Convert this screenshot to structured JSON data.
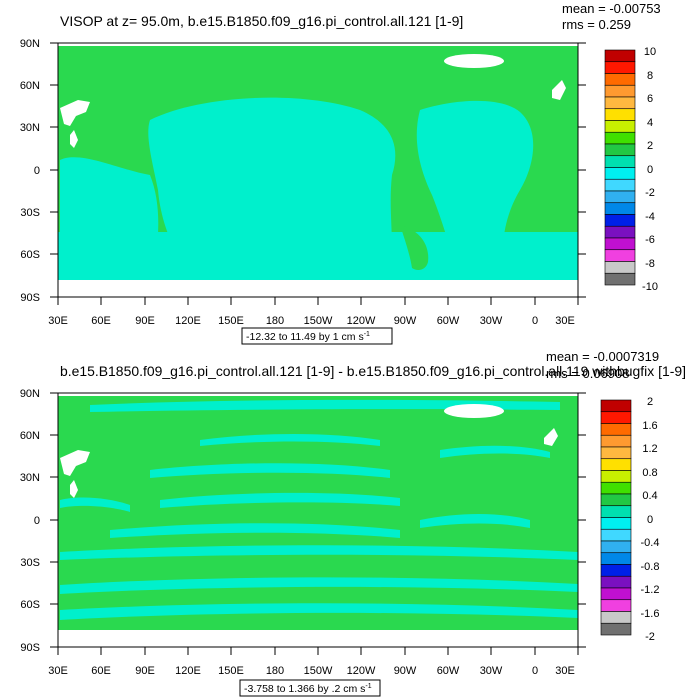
{
  "panels": [
    {
      "title": "VISOP at z=  95.0m, b.e15.B1850.f09_g16.pi_control.all.121 [1-9]",
      "mean": "mean = -0.00753",
      "rms": "rms = 0.259",
      "lat_labels": [
        "90N",
        "60N",
        "30N",
        "0",
        "30S",
        "60S",
        "90S"
      ],
      "lon_labels": [
        "30E",
        "60E",
        "90E",
        "120E",
        "150E",
        "180",
        "150W",
        "120W",
        "90W",
        "60W",
        "30W",
        "0",
        "30E"
      ],
      "colorbar_labels": [
        "10",
        "8",
        "6",
        "4",
        "2",
        "0",
        "-2",
        "-4",
        "-6",
        "-8",
        "-10"
      ],
      "info_text": "-12.32 to 11.49 by 1 cm s",
      "info_sup": "-1"
    },
    {
      "title": "b.e15.B1850.f09_g16.pi_control.all.121 [1-9] - b.e15.B1850.f09_g16.pi_control.all.119 withbugfix [1-9]",
      "mean": "mean = -0.0007319",
      "rms": "rms = 0.06908",
      "lat_labels": [
        "90N",
        "60N",
        "30N",
        "0",
        "30S",
        "60S",
        "90S"
      ],
      "lon_labels": [
        "30E",
        "60E",
        "90E",
        "120E",
        "150E",
        "180",
        "150W",
        "120W",
        "90W",
        "60W",
        "30W",
        "0",
        "30E"
      ],
      "colorbar_labels": [
        "2",
        "1.6",
        "1.2",
        "0.8",
        "0.4",
        "0",
        "-0.4",
        "-0.8",
        "-1.2",
        "-1.6",
        "-2"
      ],
      "info_text": "-3.758 to 1.366 by .2 cm s",
      "info_sup": "-1"
    }
  ],
  "colorbar_colors": [
    "#c00000",
    "#ff1800",
    "#ff6a00",
    "#ff9a30",
    "#ffb840",
    "#ffe000",
    "#c8f000",
    "#40e000",
    "#22c844",
    "#00e0b0",
    "#00f0f0",
    "#40d8ff",
    "#30b0f0",
    "#0088e8",
    "#0020e8",
    "#7a10c0",
    "#c010d0",
    "#f040e0",
    "#c8c8c8",
    "#707070"
  ],
  "colors": {
    "land": "#2ad94f",
    "ocean": "#00f0cc",
    "polar": "#ffffff"
  }
}
